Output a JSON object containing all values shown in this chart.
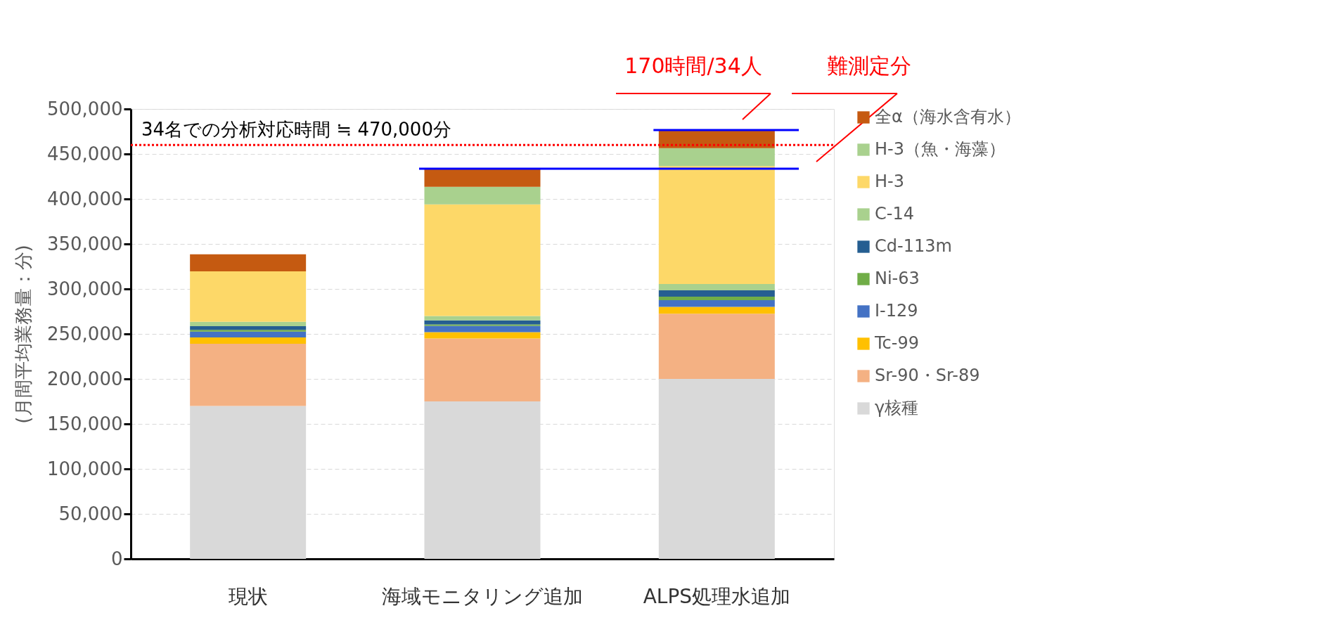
{
  "chart_data": {
    "type": "bar",
    "stacked": true,
    "categories": [
      "現状",
      "海域モニタリング追加",
      "ALPS処理水追加"
    ],
    "ylabel": "(月間平均業務量：分)",
    "ylim": [
      0,
      500000
    ],
    "yticks": [
      {
        "value": 0,
        "label": "0"
      },
      {
        "value": 50000,
        "label": "50,000"
      },
      {
        "value": 100000,
        "label": "100,000"
      },
      {
        "value": 150000,
        "label": "150,000"
      },
      {
        "value": 200000,
        "label": "200,000"
      },
      {
        "value": 250000,
        "label": "250,000"
      },
      {
        "value": 300000,
        "label": "300,000"
      },
      {
        "value": 350000,
        "label": "350,000"
      },
      {
        "value": 400000,
        "label": "400,000"
      },
      {
        "value": 450000,
        "label": "450,000"
      },
      {
        "value": 500000,
        "label": "500,000"
      }
    ],
    "grid": "y",
    "legend": "right",
    "series": [
      {
        "name": "γ核種",
        "color": "#d9d9d9",
        "values": [
          170000,
          175000,
          200000
        ]
      },
      {
        "name": "Sr-90・Sr-89",
        "color": "#f4b183",
        "values": [
          69000,
          70000,
          72500
        ]
      },
      {
        "name": "Tc-99",
        "color": "#ffc000",
        "values": [
          7000,
          7000,
          7500
        ]
      },
      {
        "name": "I-129",
        "color": "#4472c4",
        "values": [
          6500,
          7000,
          7500
        ]
      },
      {
        "name": "Ni-63",
        "color": "#70ad47",
        "values": [
          2000,
          1500,
          4000
        ]
      },
      {
        "name": "Cd-113m",
        "color": "#255e91",
        "values": [
          4000,
          4500,
          7000
        ]
      },
      {
        "name": "C-14",
        "color": "#a9d18e",
        "values": [
          5000,
          5000,
          7000
        ]
      },
      {
        "name": "H-3",
        "color": "#fdd868",
        "values": [
          56000,
          124000,
          131000
        ]
      },
      {
        "name": "H-3（魚・海藻）",
        "color": "#a9d18e",
        "values": [
          0,
          19500,
          20000
        ]
      },
      {
        "name": "全α（海水含有水）",
        "color": "#c55a11",
        "values": [
          19000,
          20000,
          20000
        ]
      }
    ],
    "ref_lines": [
      {
        "axis": "y",
        "value": 460000,
        "label": "34名での分析対応時間 ≒ 470,000分",
        "color": "#ff0000",
        "line_style": "dotted"
      },
      {
        "axis": "y",
        "value": 476500,
        "label": null,
        "color": "#0000ff",
        "line_style": "solid"
      },
      {
        "axis": "y",
        "value": 433500,
        "label": null,
        "color": "#0000ff",
        "line_style": "solid"
      }
    ],
    "annotations": [
      "170時間/34人",
      "難測定分"
    ]
  }
}
